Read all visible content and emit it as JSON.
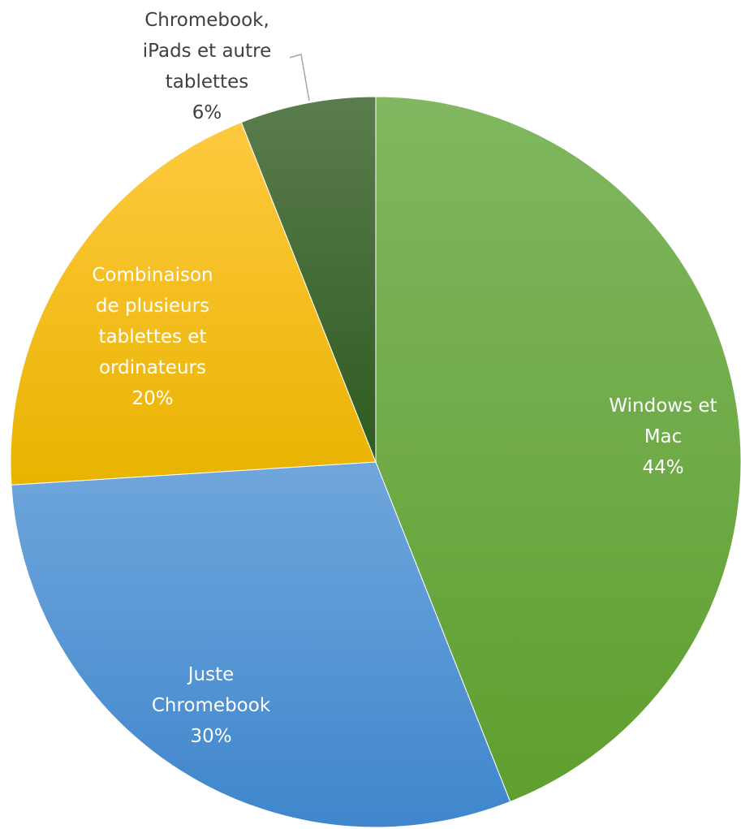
{
  "chart_data": {
    "type": "pie",
    "start_angle_deg": 0,
    "direction": "clockwise",
    "slices": [
      {
        "label_lines": [
          "Windows et",
          "Mac"
        ],
        "value": 44,
        "value_label": "44%",
        "color_top": "#80b760",
        "color_bottom": "#5f9f2f",
        "label_color": "#ffffff"
      },
      {
        "label_lines": [
          "Juste",
          "Chromebook"
        ],
        "value": 30,
        "value_label": "30%",
        "color_top": "#6fa6dc",
        "color_bottom": "#3f86cc",
        "label_color": "#ffffff"
      },
      {
        "label_lines": [
          "Combinaison",
          "de plusieurs",
          "tablettes et",
          "ordinateurs"
        ],
        "value": 20,
        "value_label": "20%",
        "color_top": "#ffc940",
        "color_bottom": "#e9b300",
        "label_color": "#ffffff"
      },
      {
        "label_lines": [
          "Chromebook,",
          "iPads et autre",
          "tablettes"
        ],
        "value": 6,
        "value_label": "6%",
        "color_top": "#5a7d4d",
        "color_bottom": "#2f5a20",
        "label_color": "#404040"
      }
    ],
    "leader_color": "#a6a6a6"
  }
}
